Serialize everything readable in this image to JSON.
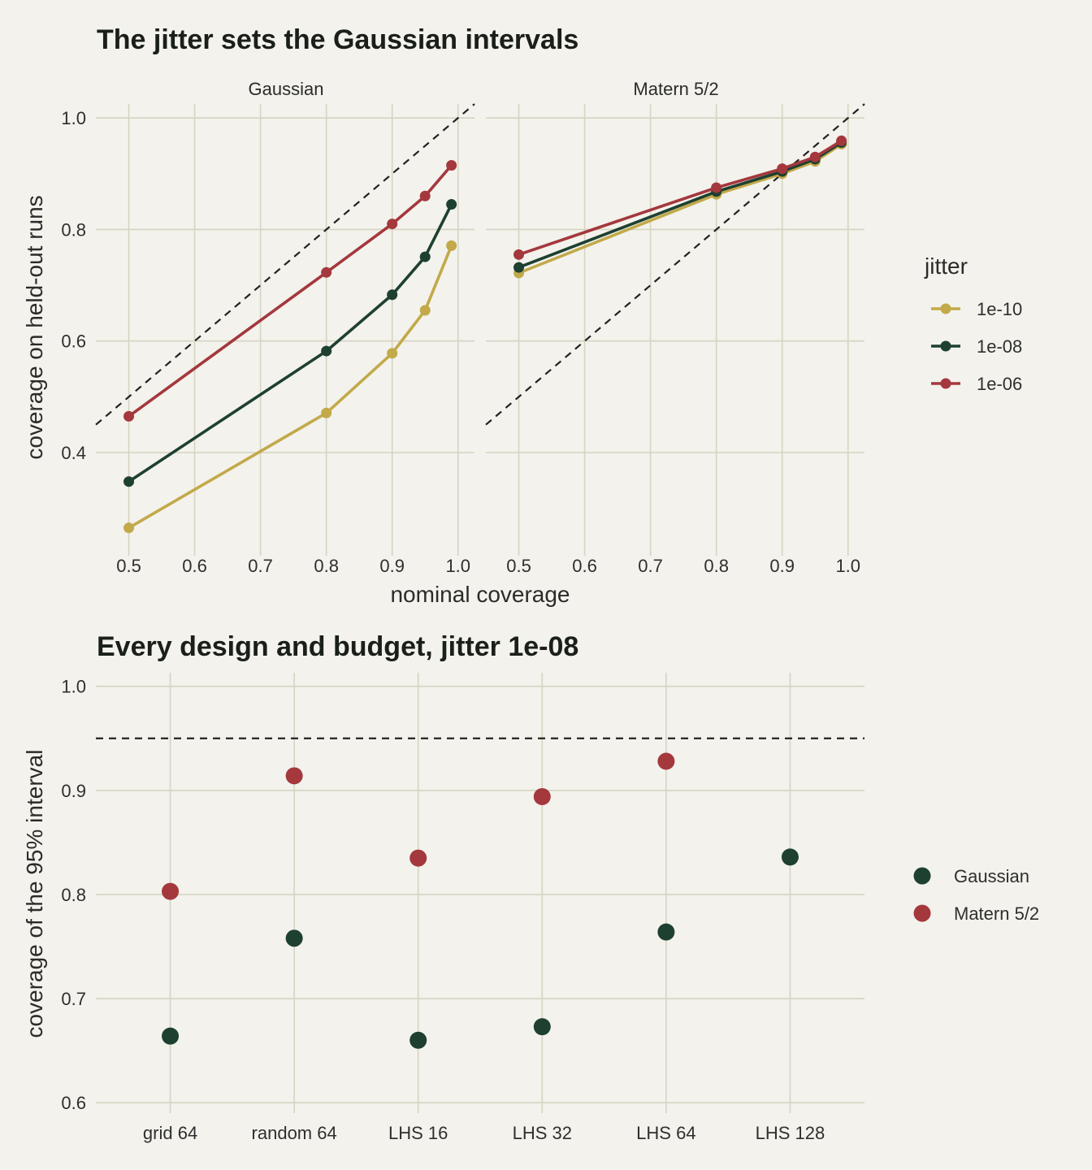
{
  "colors": {
    "background": "#f3f2ec",
    "grid": "#d6d4c2",
    "jitter_1e-10": "#c2a94a",
    "jitter_1e-08": "#1e4030",
    "jitter_1e-06": "#a4383d",
    "gaussian": "#1e4030",
    "matern": "#a4383d"
  },
  "chart_data": [
    {
      "type": "line",
      "title": "The jitter sets the Gaussian intervals",
      "xlabel": "nominal coverage",
      "ylabel": "coverage on held-out runs",
      "xlim": [
        0.45,
        1.025
      ],
      "ylim": [
        0.215,
        1.025
      ],
      "xticks": [
        0.5,
        0.6,
        0.7,
        0.8,
        0.9,
        1.0
      ],
      "xtick_labels": [
        "0.5",
        "0.6",
        "0.7",
        "0.8",
        "0.9",
        "1.0"
      ],
      "yticks": [
        0.4,
        0.6,
        0.8,
        1.0
      ],
      "ytick_labels": [
        "0.4",
        "0.6",
        "0.8",
        "1.0"
      ],
      "reference_line": "y = x (dashed)",
      "grid": true,
      "legend": {
        "title": "jitter",
        "position": "right",
        "entries": [
          "1e-10",
          "1e-08",
          "1e-06"
        ]
      },
      "x": [
        0.5,
        0.8,
        0.9,
        0.95,
        0.99
      ],
      "facets": [
        {
          "name": "Gaussian",
          "series": [
            {
              "name": "1e-10",
              "values": [
                0.265,
                0.471,
                0.578,
                0.655,
                0.771
              ]
            },
            {
              "name": "1e-08",
              "values": [
                0.348,
                0.582,
                0.683,
                0.751,
                0.845
              ]
            },
            {
              "name": "1e-06",
              "values": [
                0.465,
                0.723,
                0.81,
                0.86,
                0.915
              ]
            }
          ]
        },
        {
          "name": "Matern 5/2",
          "series": [
            {
              "name": "1e-10",
              "values": [
                0.722,
                0.863,
                0.9,
                0.922,
                0.953
              ]
            },
            {
              "name": "1e-08",
              "values": [
                0.732,
                0.868,
                0.904,
                0.926,
                0.956
              ]
            },
            {
              "name": "1e-06",
              "values": [
                0.755,
                0.875,
                0.909,
                0.93,
                0.959
              ]
            }
          ]
        }
      ]
    },
    {
      "type": "scatter",
      "title": "Every design and budget, jitter 1e-08",
      "xlabel": "",
      "ylabel": "coverage of the 95% interval",
      "categories": [
        "grid 64",
        "random 64",
        "LHS 16",
        "LHS 32",
        "LHS 64",
        "LHS 128"
      ],
      "ylim": [
        0.59,
        1.013
      ],
      "yticks": [
        0.6,
        0.7,
        0.8,
        0.9,
        1.0
      ],
      "ytick_labels": [
        "0.6",
        "0.7",
        "0.8",
        "0.9",
        "1.0"
      ],
      "reference_line": "y = 0.95 (dashed)",
      "grid": true,
      "legend": {
        "title": "",
        "position": "right",
        "entries": [
          "Gaussian",
          "Matern 5/2"
        ]
      },
      "series": [
        {
          "name": "Gaussian",
          "values": [
            0.664,
            0.758,
            0.66,
            0.673,
            0.764,
            0.836
          ]
        },
        {
          "name": "Matern 5/2",
          "values": [
            0.803,
            0.914,
            0.835,
            0.894,
            0.928,
            null
          ]
        }
      ]
    }
  ]
}
